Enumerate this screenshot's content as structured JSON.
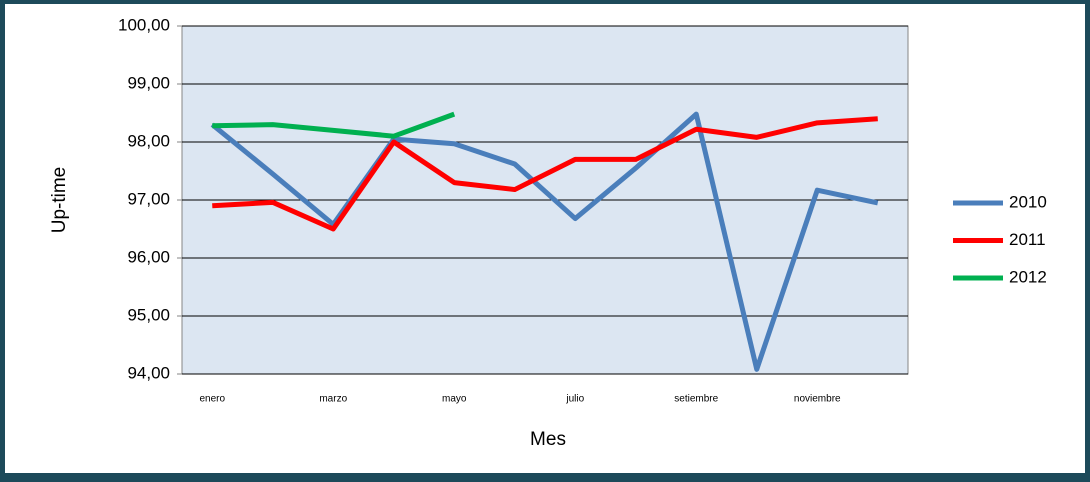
{
  "chart_data": {
    "type": "line",
    "x_label": "Mes",
    "y_label": "Up-time",
    "categories": [
      "enero",
      null,
      "marzo",
      null,
      "mayo",
      null,
      "julio",
      null,
      "setiembre",
      null,
      "noviembre",
      null
    ],
    "series": [
      {
        "name": "2010",
        "color": "#4a7ebb",
        "values": [
          98.3,
          97.45,
          96.58,
          98.05,
          97.97,
          97.62,
          96.68,
          97.55,
          98.48,
          94.08,
          97.17,
          96.95
        ]
      },
      {
        "name": "2011",
        "color": "#ff0000",
        "values": [
          96.9,
          96.96,
          96.5,
          98.0,
          97.3,
          97.18,
          97.7,
          97.7,
          98.22,
          98.08,
          98.33,
          98.4
        ]
      },
      {
        "name": "2012",
        "color": "#00b050",
        "values": [
          98.28,
          98.3,
          98.2,
          98.1,
          98.48,
          null,
          null,
          null,
          null,
          null,
          null,
          null
        ]
      }
    ],
    "ylim": [
      94,
      100
    ],
    "yticks": [
      {
        "value": 94,
        "label": "94,00"
      },
      {
        "value": 95,
        "label": "95,00"
      },
      {
        "value": 96,
        "label": "96,00"
      },
      {
        "value": 97,
        "label": "97,00"
      },
      {
        "value": 98,
        "label": "98,00"
      },
      {
        "value": 99,
        "label": "99,00"
      },
      {
        "value": 100,
        "label": "100,00"
      }
    ],
    "grid": true,
    "legend": "right"
  }
}
